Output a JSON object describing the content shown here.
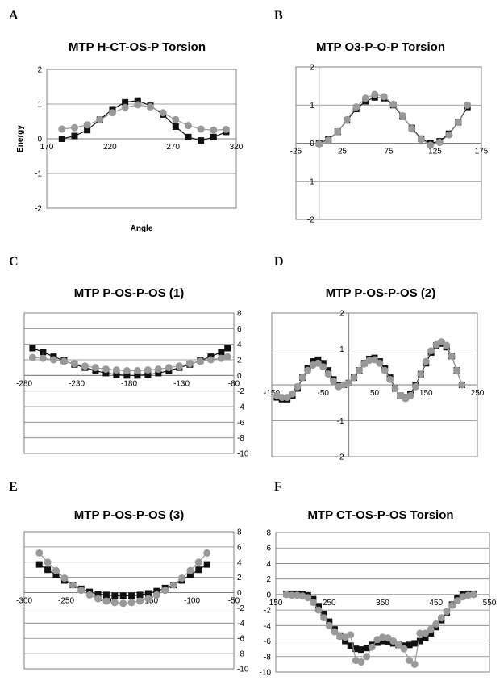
{
  "panels": [
    {
      "letter": "A",
      "title": "MTP H-CT-OS-P Torsion",
      "chart_data": {
        "type": "line",
        "xlabel": "Angle",
        "ylabel": "Energy",
        "xlim": [
          170,
          320
        ],
        "ylim": [
          -2,
          2
        ],
        "xticks": [
          170,
          220,
          270,
          320
        ],
        "yticks": [
          -2,
          -1,
          0,
          1,
          2
        ],
        "series": [
          {
            "color": "#111111",
            "marker": "square",
            "x": [
              182,
              192,
              202,
              212,
              222,
              232,
              242,
              252,
              262,
              272,
              282,
              292,
              302,
              312
            ],
            "y": [
              0.0,
              0.08,
              0.25,
              0.55,
              0.85,
              1.05,
              1.1,
              0.95,
              0.7,
              0.35,
              0.05,
              -0.05,
              0.05,
              0.2
            ]
          },
          {
            "color": "#999999",
            "marker": "circle",
            "x": [
              182,
              192,
              202,
              212,
              222,
              232,
              242,
              252,
              262,
              272,
              282,
              292,
              302,
              312
            ],
            "y": [
              0.28,
              0.32,
              0.4,
              0.55,
              0.75,
              0.9,
              0.98,
              0.92,
              0.75,
              0.55,
              0.38,
              0.28,
              0.25,
              0.27
            ]
          }
        ]
      }
    },
    {
      "letter": "B",
      "title": "MTP O3-P-O-P Torsion",
      "chart_data": {
        "type": "line",
        "xlabel": "",
        "ylabel": "",
        "xlim": [
          -25,
          175
        ],
        "ylim": [
          -2,
          2
        ],
        "xticks": [
          -25,
          25,
          75,
          125,
          175
        ],
        "yticks": [
          -2,
          -1,
          0,
          1,
          2
        ],
        "series": [
          {
            "color": "#111111",
            "marker": "square",
            "x": [
              0,
              10,
              20,
              30,
              40,
              50,
              60,
              70,
              80,
              90,
              100,
              110,
              120,
              130,
              140,
              150,
              160
            ],
            "y": [
              0.0,
              0.1,
              0.3,
              0.6,
              0.9,
              1.1,
              1.2,
              1.18,
              1.0,
              0.7,
              0.4,
              0.12,
              0.0,
              0.05,
              0.25,
              0.55,
              0.95
            ]
          },
          {
            "color": "#999999",
            "marker": "circle",
            "x": [
              0,
              10,
              20,
              30,
              40,
              50,
              60,
              70,
              80,
              90,
              100,
              110,
              120,
              130,
              140,
              150,
              160
            ],
            "y": [
              -0.02,
              0.08,
              0.3,
              0.62,
              0.95,
              1.18,
              1.28,
              1.22,
              1.02,
              0.72,
              0.38,
              0.1,
              -0.05,
              0.02,
              0.22,
              0.55,
              1.0
            ]
          }
        ]
      }
    },
    {
      "letter": "C",
      "title": "MTP P-OS-P-OS (1)",
      "chart_data": {
        "type": "line",
        "xlabel": "",
        "ylabel": "",
        "xlim": [
          -280,
          -80
        ],
        "ylim": [
          -10,
          8
        ],
        "xticks": [
          -280,
          -230,
          -180,
          -130,
          -80
        ],
        "xticklabels": [
          "-280",
          "-230",
          "-180",
          "-130",
          "-80"
        ],
        "yticks": [
          -10,
          -8,
          -6,
          -4,
          -2,
          0,
          2,
          4,
          6,
          8
        ],
        "yaxis_side": "right",
        "series": [
          {
            "color": "#111111",
            "marker": "square",
            "x": [
              -272,
              -262,
              -252,
              -242,
              -232,
              -222,
              -212,
              -202,
              -192,
              -182,
              -172,
              -162,
              -152,
              -142,
              -132,
              -122,
              -112,
              -102,
              -92,
              -86
            ],
            "y": [
              3.5,
              3.0,
              2.4,
              1.9,
              1.4,
              1.0,
              0.6,
              0.3,
              0.1,
              0.0,
              0.0,
              0.1,
              0.3,
              0.6,
              1.0,
              1.4,
              1.9,
              2.4,
              3.0,
              3.5
            ]
          },
          {
            "color": "#999999",
            "marker": "circle",
            "x": [
              -272,
              -262,
              -252,
              -242,
              -232,
              -222,
              -212,
              -202,
              -192,
              -182,
              -172,
              -162,
              -152,
              -142,
              -132,
              -122,
              -112,
              -102,
              -92,
              -86
            ],
            "y": [
              2.3,
              2.2,
              2.0,
              1.8,
              1.5,
              1.2,
              1.0,
              0.8,
              0.7,
              0.6,
              0.6,
              0.7,
              0.8,
              1.0,
              1.2,
              1.5,
              1.8,
              2.0,
              2.2,
              2.4
            ]
          }
        ]
      }
    },
    {
      "letter": "D",
      "title": "MTP P-OS-P-OS (2)",
      "chart_data": {
        "type": "line",
        "xlabel": "",
        "ylabel": "",
        "xlim": [
          -150,
          250
        ],
        "ylim": [
          -2,
          2
        ],
        "xticks": [
          -150,
          -50,
          50,
          150,
          250
        ],
        "yticks": [
          -2,
          -1,
          0,
          1,
          2
        ],
        "series": [
          {
            "color": "#111111",
            "marker": "square",
            "x": [
              -140,
              -130,
              -120,
              -110,
              -100,
              -90,
              -80,
              -70,
              -60,
              -50,
              -40,
              -30,
              -20,
              -10,
              0,
              10,
              20,
              30,
              40,
              50,
              60,
              70,
              80,
              90,
              100,
              110,
              120,
              130,
              140,
              150,
              160,
              170,
              180,
              190,
              200,
              210,
              220
            ],
            "y": [
              -0.35,
              -0.4,
              -0.4,
              -0.3,
              -0.1,
              0.2,
              0.45,
              0.65,
              0.7,
              0.6,
              0.4,
              0.15,
              0.0,
              0.0,
              0.05,
              0.2,
              0.4,
              0.6,
              0.72,
              0.75,
              0.65,
              0.45,
              0.2,
              -0.1,
              -0.3,
              -0.35,
              -0.25,
              0.0,
              0.3,
              0.6,
              0.9,
              1.1,
              1.15,
              1.05,
              0.8,
              0.4,
              0.0
            ]
          },
          {
            "color": "#999999",
            "marker": "circle",
            "x": [
              -140,
              -130,
              -120,
              -110,
              -100,
              -90,
              -80,
              -70,
              -60,
              -50,
              -40,
              -30,
              -20,
              -10,
              0,
              10,
              20,
              30,
              40,
              50,
              60,
              70,
              80,
              90,
              100,
              110,
              120,
              130,
              140,
              150,
              160,
              170,
              180,
              190,
              200,
              210,
              220
            ],
            "y": [
              -0.3,
              -0.35,
              -0.35,
              -0.25,
              -0.05,
              0.2,
              0.4,
              0.55,
              0.6,
              0.5,
              0.3,
              0.1,
              -0.05,
              0.0,
              0.05,
              0.2,
              0.4,
              0.58,
              0.68,
              0.7,
              0.6,
              0.4,
              0.15,
              -0.1,
              -0.3,
              -0.38,
              -0.3,
              -0.05,
              0.3,
              0.65,
              0.95,
              1.12,
              1.2,
              1.1,
              0.8,
              0.4,
              0.0
            ]
          }
        ]
      }
    },
    {
      "letter": "E",
      "title": "MTP P-OS-P-OS (3)",
      "chart_data": {
        "type": "line",
        "xlabel": "",
        "ylabel": "",
        "xlim": [
          -300,
          -50
        ],
        "ylim": [
          -10,
          8
        ],
        "xticks": [
          -300,
          -250,
          -200,
          -150,
          -100,
          -50
        ],
        "xticklabels": [
          "-300",
          "-250",
          "-200",
          "-150",
          "-100",
          "-50"
        ],
        "yticks": [
          -10,
          -8,
          -6,
          -4,
          -2,
          0,
          2,
          4,
          6,
          8
        ],
        "yaxis_side": "right",
        "series": [
          {
            "color": "#111111",
            "marker": "square",
            "x": [
              -282,
              -272,
              -262,
              -252,
              -242,
              -232,
              -222,
              -212,
              -202,
              -192,
              -182,
              -172,
              -162,
              -152,
              -142,
              -132,
              -122,
              -112,
              -102,
              -92,
              -82
            ],
            "y": [
              3.7,
              3.0,
              2.3,
              1.6,
              1.0,
              0.5,
              0.1,
              -0.2,
              -0.3,
              -0.4,
              -0.4,
              -0.4,
              -0.3,
              -0.1,
              0.2,
              0.6,
              1.0,
              1.6,
              2.3,
              3.0,
              3.7
            ]
          },
          {
            "color": "#999999",
            "marker": "circle",
            "x": [
              -282,
              -272,
              -262,
              -252,
              -242,
              -232,
              -222,
              -212,
              -202,
              -192,
              -182,
              -172,
              -162,
              -152,
              -142,
              -132,
              -122,
              -112,
              -102,
              -92,
              -82
            ],
            "y": [
              5.2,
              4.0,
              2.9,
              1.9,
              1.0,
              0.3,
              -0.3,
              -0.8,
              -1.1,
              -1.3,
              -1.4,
              -1.3,
              -1.1,
              -0.8,
              -0.3,
              0.3,
              1.0,
              1.9,
              2.9,
              4.0,
              5.2
            ]
          }
        ]
      }
    },
    {
      "letter": "F",
      "title": "MTP CT-OS-P-OS Torsion",
      "chart_data": {
        "type": "line",
        "xlabel": "",
        "ylabel": "",
        "xlim": [
          150,
          550
        ],
        "ylim": [
          -10,
          8
        ],
        "xticks": [
          150,
          250,
          350,
          450,
          550
        ],
        "xticklabels": [
          "150",
          "250",
          "350",
          "450",
          "550"
        ],
        "yticks": [
          -10,
          -8,
          -6,
          -4,
          -2,
          0,
          2,
          4,
          6,
          8
        ],
        "series": [
          {
            "color": "#111111",
            "marker": "square",
            "x": [
              170,
              180,
              190,
              200,
              210,
              220,
              230,
              240,
              250,
              260,
              270,
              280,
              290,
              300,
              310,
              320,
              330,
              340,
              350,
              360,
              370,
              380,
              390,
              400,
              410,
              420,
              430,
              440,
              450,
              460,
              470,
              480,
              490,
              500,
              510,
              520
            ],
            "y": [
              0.1,
              0.1,
              0.1,
              0.0,
              -0.1,
              -0.6,
              -1.5,
              -2.5,
              -3.5,
              -4.5,
              -5.3,
              -6.0,
              -6.6,
              -7.0,
              -7.1,
              -6.9,
              -6.5,
              -6.2,
              -6.0,
              -6.1,
              -6.3,
              -6.5,
              -6.6,
              -6.5,
              -6.3,
              -6.0,
              -5.6,
              -5.0,
              -4.2,
              -3.3,
              -2.3,
              -1.3,
              -0.5,
              0.0,
              0.1,
              0.1
            ]
          },
          {
            "color": "#999999",
            "marker": "circle",
            "x": [
              170,
              180,
              190,
              200,
              210,
              220,
              230,
              240,
              250,
              260,
              270,
              280,
              290,
              300,
              310,
              320,
              330,
              340,
              350,
              360,
              370,
              380,
              390,
              400,
              410,
              420,
              430,
              440,
              450,
              460,
              470,
              480,
              490,
              500,
              510,
              520
            ],
            "y": [
              0.0,
              -0.1,
              -0.1,
              -0.2,
              -0.4,
              -1.0,
              -2.0,
              -3.0,
              -4.0,
              -4.8,
              -5.4,
              -5.5,
              -5.2,
              -8.5,
              -8.7,
              -8.0,
              -6.8,
              -5.8,
              -5.5,
              -5.6,
              -6.0,
              -6.5,
              -7.0,
              -8.5,
              -9.0,
              -5.0,
              -5.0,
              -4.5,
              -3.8,
              -3.0,
              -2.2,
              -1.4,
              -0.8,
              -0.3,
              -0.1,
              0.0
            ]
          }
        ]
      }
    }
  ]
}
